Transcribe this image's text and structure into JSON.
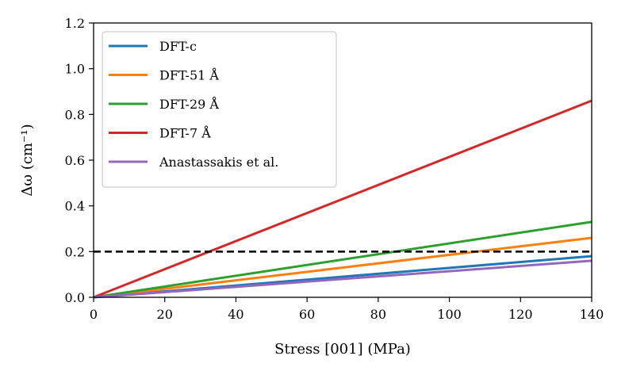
{
  "chart_data": {
    "type": "line",
    "title": "",
    "xlabel": "Stress [001] (MPa)",
    "ylabel": "Δω (cm⁻¹)",
    "xlim": [
      0,
      140
    ],
    "ylim": [
      0,
      1.2
    ],
    "xticks": [
      0,
      20,
      40,
      60,
      80,
      100,
      120,
      140
    ],
    "xtick_labels": [
      "0",
      "20",
      "40",
      "60",
      "80",
      "100",
      "120",
      "140"
    ],
    "yticks": [
      0.0,
      0.2,
      0.4,
      0.6,
      0.8,
      1.0,
      1.2
    ],
    "ytick_labels": [
      "0.0",
      "0.2",
      "0.4",
      "0.6",
      "0.8",
      "1.0",
      "1.2"
    ],
    "grid": false,
    "legend_position": "top-left",
    "series": [
      {
        "name": "DFT-c",
        "color": "#1f77b4",
        "x": [
          0,
          140
        ],
        "y": [
          0,
          0.18
        ]
      },
      {
        "name": "DFT-51 Å",
        "color": "#ff7f0e",
        "x": [
          0,
          140
        ],
        "y": [
          0,
          0.26
        ]
      },
      {
        "name": "DFT-29 Å",
        "color": "#2ca02c",
        "x": [
          0,
          140
        ],
        "y": [
          0,
          0.33
        ]
      },
      {
        "name": "DFT-7 Å",
        "color": "#d62728",
        "x": [
          0,
          140
        ],
        "y": [
          0,
          0.86
        ]
      },
      {
        "name": "Anastassakis et al.",
        "color": "#9467bd",
        "x": [
          0,
          140
        ],
        "y": [
          0,
          0.16
        ]
      }
    ],
    "reference_line": {
      "y": 0.2,
      "style": "dashed",
      "color": "#000000"
    }
  }
}
